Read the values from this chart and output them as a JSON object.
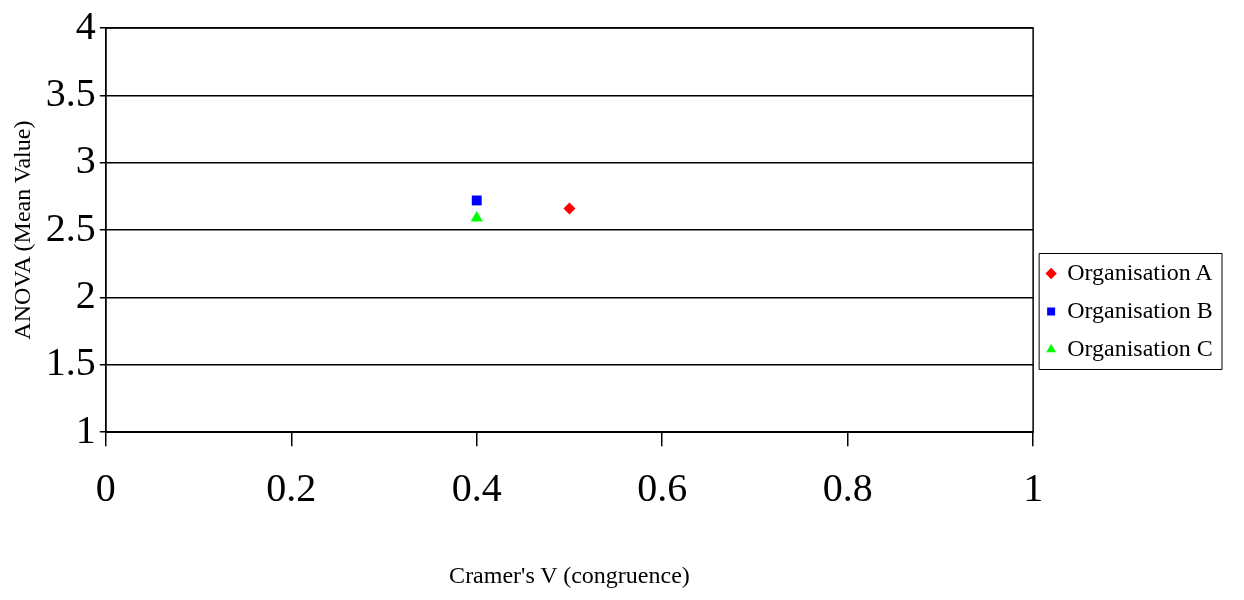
{
  "chart_data": {
    "type": "scatter",
    "xlabel": "Cramer's V (congruence)",
    "ylabel": "ANOVA (Mean Value)",
    "x": [
      0.4,
      0.5
    ],
    "series": [
      {
        "name": "Organisation A",
        "color": "#ff0000",
        "marker": "diamond",
        "values": [
          null,
          2.66
        ]
      },
      {
        "name": "Organisation B",
        "color": "#0000ff",
        "marker": "square",
        "values": [
          2.72,
          null
        ]
      },
      {
        "name": "Organisation C",
        "color": "#00ff00",
        "marker": "triangle",
        "values": [
          2.59,
          null
        ]
      }
    ],
    "xlim": [
      0,
      1
    ],
    "xticks": [
      0,
      0.2,
      0.4,
      0.6,
      0.8,
      1
    ],
    "ylim": [
      1,
      4
    ],
    "yticks": [
      1,
      1.5,
      2,
      2.5,
      3,
      3.5,
      4
    ],
    "grid": "y",
    "legend": "right"
  }
}
